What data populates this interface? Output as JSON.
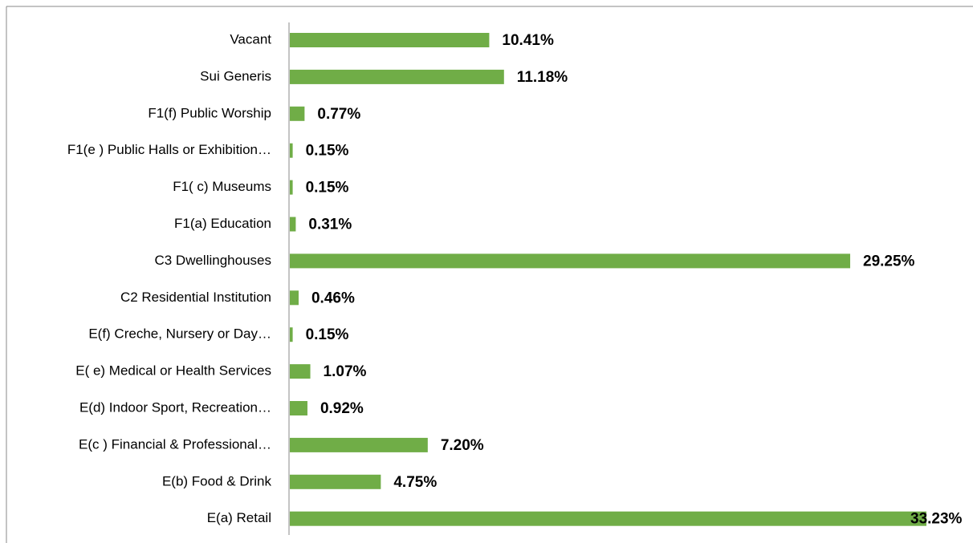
{
  "chart_data": {
    "type": "bar",
    "orientation": "horizontal",
    "color": "#70ad47",
    "categories": [
      "Vacant",
      "Sui Generis",
      "F1(f) Public Worship",
      "F1(e ) Public Halls or Exhibition…",
      "F1( c) Museums",
      "F1(a) Education",
      "C3 Dwellinghouses",
      "C2 Residential Institution",
      "E(f) Creche, Nursery or Day…",
      "E( e) Medical or Health Services",
      "E(d) Indoor Sport, Recreation…",
      "E(c ) Financial & Professional…",
      "E(b) Food & Drink",
      "E(a) Retail"
    ],
    "values": [
      10.41,
      11.18,
      0.77,
      0.15,
      0.15,
      0.31,
      29.25,
      0.46,
      0.15,
      1.07,
      0.92,
      7.2,
      4.75,
      33.23
    ],
    "value_labels": [
      "10.41%",
      "11.18%",
      "0.77%",
      "0.15%",
      "0.15%",
      "0.31%",
      "29.25%",
      "0.46%",
      "0.15%",
      "1.07%",
      "0.92%",
      "7.20%",
      "4.75%",
      "33.23%"
    ]
  }
}
